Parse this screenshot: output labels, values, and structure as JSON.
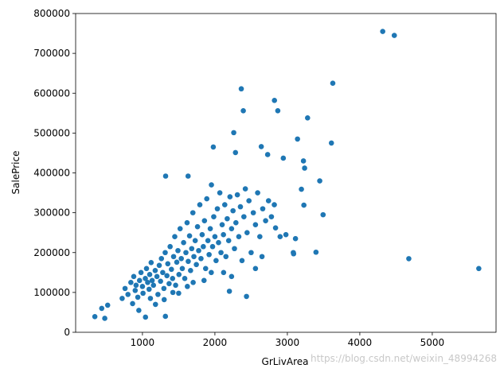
{
  "chart_data": {
    "type": "scatter",
    "x_label": "GrLivArea",
    "y_label": "SalePrice",
    "watermark": "https://blog.csdn.net/weixin_48994268",
    "color": "#1f77b4",
    "xlim": [
      78,
      5880
    ],
    "xticks": [
      1000,
      2000,
      3000,
      4000,
      5000
    ],
    "ylim": [
      0,
      800000
    ],
    "yticks": [
      0,
      100000,
      200000,
      300000,
      400000,
      500000,
      600000,
      700000,
      800000
    ],
    "x": [
      4316,
      4476,
      3627,
      2364,
      2822,
      2868,
      2392,
      3279,
      2260,
      3140,
      3608,
      2640,
      1978,
      2728,
      2284,
      2944,
      3222,
      3238,
      1320,
      1630,
      3447,
      3194,
      3493,
      3228,
      4676,
      5642,
      3395,
      3082,
      3086,
      3112,
      2980,
      2837,
      343,
      480,
      438,
      520,
      1042,
      1317,
      2436,
      2200,
      720,
      760,
      800,
      840,
      864,
      880,
      900,
      912,
      936,
      960,
      980,
      1000,
      1008,
      1040,
      1056,
      1072,
      1092,
      1100,
      1120,
      1134,
      1152,
      1176,
      1200,
      1214,
      1232,
      1250,
      1262,
      1280,
      1296,
      1314,
      1338,
      1350,
      1368,
      1382,
      1400,
      1416,
      1430,
      1446,
      1458,
      1474,
      1490,
      1504,
      1520,
      1536,
      1550,
      1568,
      1584,
      1600,
      1616,
      1632,
      1650,
      1664,
      1680,
      1696,
      1710,
      1728,
      1744,
      1760,
      1776,
      1792,
      1808,
      1824,
      1840,
      1856,
      1872,
      1888,
      1904,
      1920,
      1936,
      1952,
      1968,
      1984,
      2000,
      2016,
      2034,
      2050,
      2068,
      2084,
      2100,
      2118,
      2136,
      2152,
      2170,
      2190,
      2208,
      2230,
      2250,
      2270,
      2290,
      2310,
      2330,
      2352,
      2374,
      2400,
      2420,
      2444,
      2470,
      2500,
      2530,
      2560,
      2590,
      2620,
      2660,
      2700,
      2740,
      2780,
      2820,
      2560,
      2120,
      1700,
      1300,
      1180,
      950,
      1500,
      1850,
      2230,
      1950,
      1420,
      1110,
      1620,
      2650,
      2900
    ],
    "values": [
      755000,
      745000,
      625000,
      611000,
      582000,
      556000,
      556000,
      538000,
      501000,
      485000,
      475000,
      466000,
      465000,
      446000,
      451000,
      437000,
      430000,
      412000,
      392000,
      392000,
      380000,
      359000,
      295000,
      319000,
      184750,
      160000,
      201000,
      200000,
      197000,
      235000,
      245000,
      262000,
      39300,
      35000,
      60000,
      68000,
      38000,
      40000,
      90000,
      103000,
      85000,
      110000,
      95000,
      125000,
      72000,
      140000,
      105000,
      118000,
      88000,
      130000,
      150000,
      115000,
      98000,
      135000,
      160000,
      125000,
      108000,
      145000,
      175000,
      130000,
      118000,
      155000,
      140000,
      95000,
      168000,
      128000,
      185000,
      150000,
      110000,
      200000,
      142000,
      172000,
      122000,
      215000,
      158000,
      135000,
      190000,
      240000,
      118000,
      176000,
      205000,
      145000,
      260000,
      185000,
      160000,
      225000,
      135000,
      200000,
      275000,
      178000,
      242000,
      155000,
      210000,
      300000,
      190000,
      230000,
      170000,
      265000,
      205000,
      320000,
      185000,
      245000,
      215000,
      280000,
      160000,
      335000,
      230000,
      195000,
      260000,
      370000,
      215000,
      290000,
      240000,
      180000,
      310000,
      225000,
      350000,
      200000,
      270000,
      245000,
      320000,
      190000,
      285000,
      230000,
      340000,
      260000,
      305000,
      210000,
      275000,
      345000,
      240000,
      315000,
      180000,
      290000,
      360000,
      250000,
      330000,
      200000,
      300000,
      270000,
      350000,
      240000,
      310000,
      280000,
      330000,
      290000,
      320000,
      160000,
      150000,
      125000,
      82000,
      70000,
      55000,
      98000,
      130000,
      140000,
      150000,
      100000,
      85000,
      115000,
      190000,
      240000
    ]
  }
}
